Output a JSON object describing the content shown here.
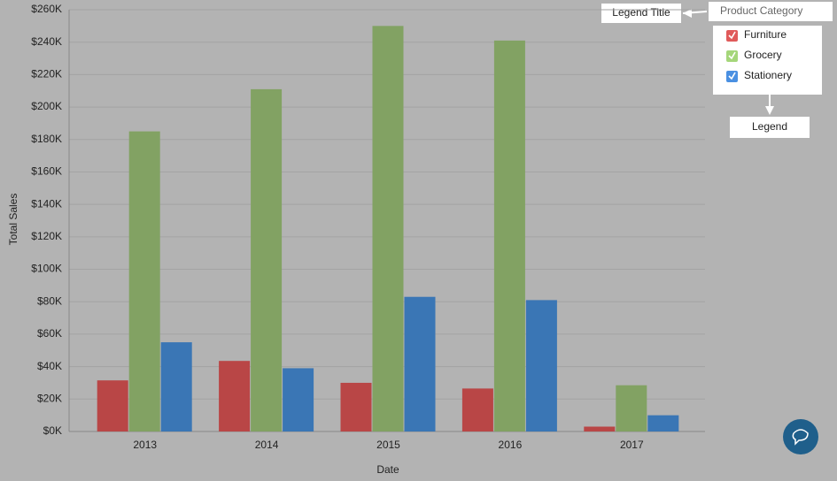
{
  "chart_data": {
    "type": "bar",
    "x_label": "Date",
    "y_label": "Total Sales",
    "legend_title": "Product Category",
    "legend": "top-right",
    "annotations": [
      "Legend Title",
      "Legend"
    ],
    "categories": [
      "2013",
      "2014",
      "2015",
      "2016",
      "2017"
    ],
    "series": [
      {
        "name": "Furniture",
        "color": "#b94646",
        "values": [
          31500,
          43500,
          30000,
          26500,
          3000
        ]
      },
      {
        "name": "Grocery",
        "color": "#82a263",
        "values": [
          185000,
          211000,
          250000,
          241000,
          28500
        ]
      },
      {
        "name": "Stationery",
        "color": "#3a76b5",
        "values": [
          55000,
          39000,
          83000,
          81000,
          10000
        ]
      }
    ],
    "ylim": [
      0,
      260000
    ],
    "yticks": [
      {
        "value": 0,
        "label": "$0K"
      },
      {
        "value": 20000,
        "label": "$20K"
      },
      {
        "value": 40000,
        "label": "$40K"
      },
      {
        "value": 60000,
        "label": "$60K"
      },
      {
        "value": 80000,
        "label": "$80K"
      },
      {
        "value": 100000,
        "label": "$100K"
      },
      {
        "value": 120000,
        "label": "$120K"
      },
      {
        "value": 140000,
        "label": "$140K"
      },
      {
        "value": 160000,
        "label": "$160K"
      },
      {
        "value": 180000,
        "label": "$180K"
      },
      {
        "value": 200000,
        "label": "$200K"
      },
      {
        "value": 220000,
        "label": "$220K"
      },
      {
        "value": 240000,
        "label": "$240K"
      },
      {
        "value": 260000,
        "label": "$260K"
      }
    ],
    "grid": true
  }
}
